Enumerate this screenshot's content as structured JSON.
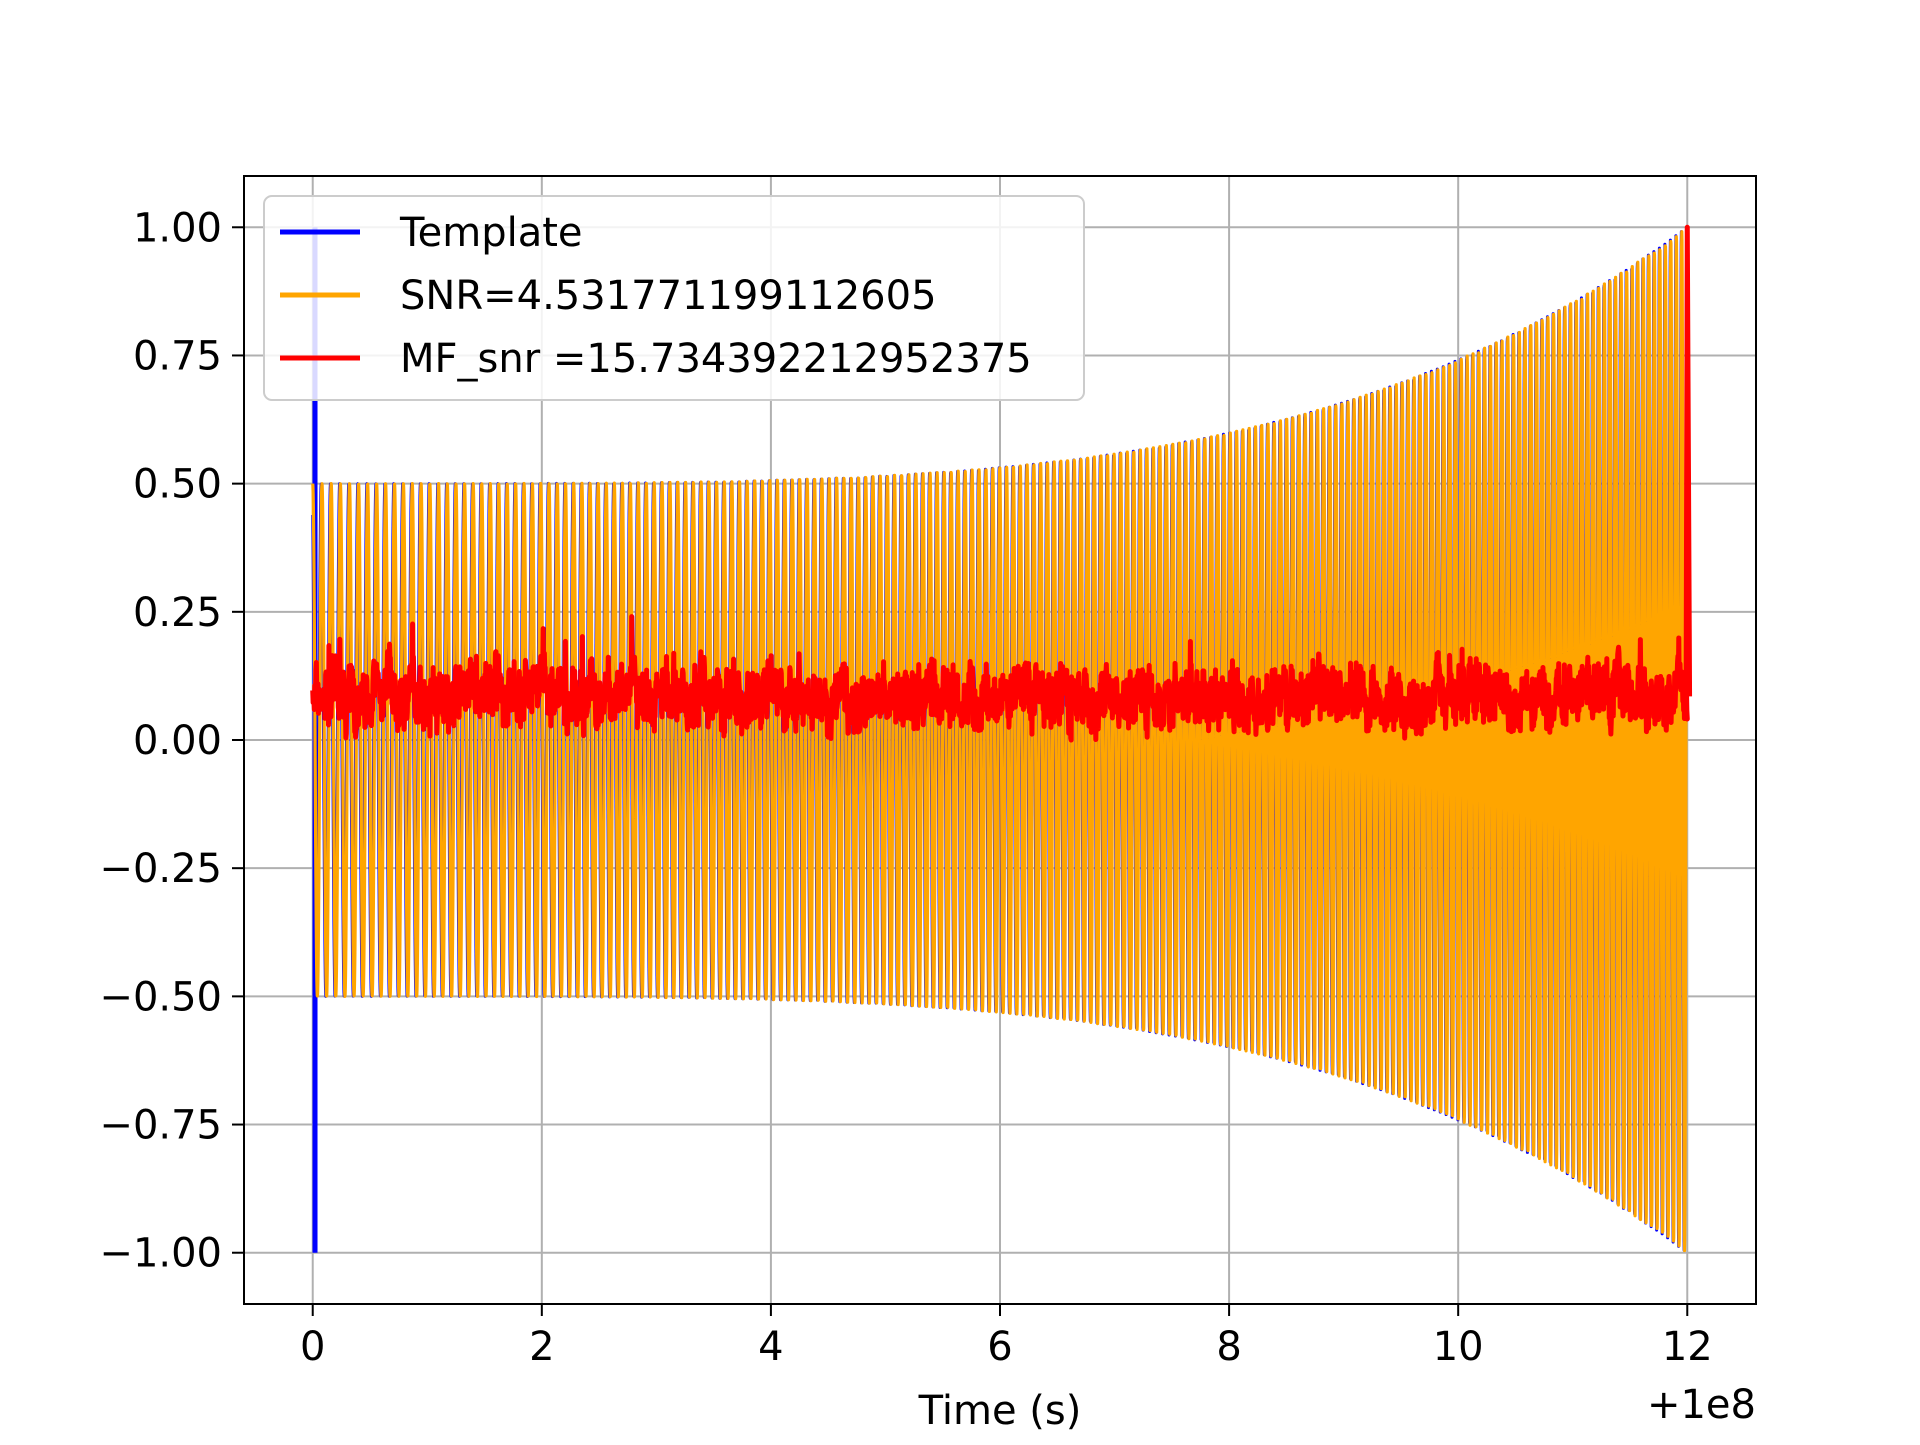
{
  "chart_data": {
    "type": "line",
    "xlabel": "Time (s)",
    "offset_text": "+1e8",
    "xlim": [
      -0.6,
      12.6
    ],
    "ylim": [
      -1.1,
      1.1
    ],
    "xticks": [
      0,
      2,
      4,
      6,
      8,
      10,
      12
    ],
    "xtick_labels": [
      "0",
      "2",
      "4",
      "6",
      "8",
      "10",
      "12"
    ],
    "yticks": [
      1.0,
      0.75,
      0.5,
      0.25,
      0.0,
      -0.25,
      -0.5,
      -0.75,
      -1.0
    ],
    "ytick_labels": [
      "1.00",
      "0.75",
      "0.50",
      "0.25",
      "0.00",
      "−0.25",
      "−0.50",
      "−0.75",
      "−1.00"
    ],
    "grid": true,
    "legend_position": "upper-left",
    "series": [
      {
        "name": "Template",
        "color": "#0000ff",
        "kind": "chirp",
        "start_time": 0,
        "end_time": 12,
        "start_amplitude": 0.5,
        "end_amplitude": 1.0,
        "cycles": 200,
        "edge_spike": [
          1.0,
          -1.0
        ]
      },
      {
        "name": "SNR=4.531771199112605",
        "color": "#ffa500",
        "kind": "chirp",
        "start_time": 0,
        "end_time": 12,
        "start_amplitude": 0.5,
        "end_amplitude": 1.0,
        "cycles": 200
      },
      {
        "name": "MF_snr =15.734392212952375",
        "color": "#ff0000",
        "kind": "noise",
        "start_time": 0,
        "end_time": 12,
        "baseline": 0.085,
        "min": 0.0,
        "max": 0.25,
        "peak": [
          12.0,
          1.0
        ]
      }
    ]
  }
}
